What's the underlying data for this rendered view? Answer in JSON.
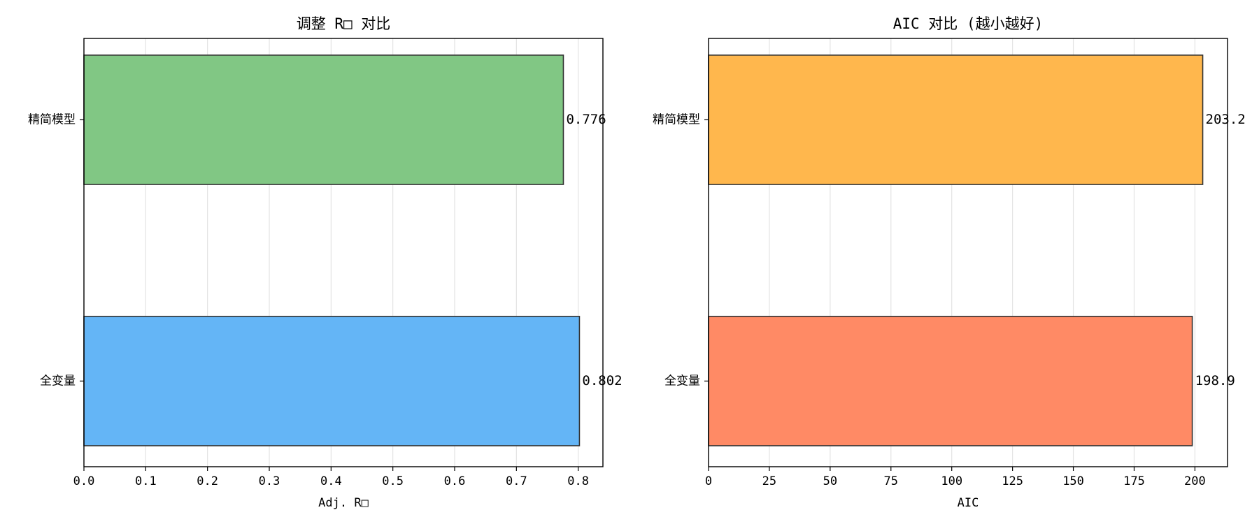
{
  "chart_data": [
    {
      "type": "bar",
      "orientation": "horizontal",
      "title": "调整 R□ 对比",
      "xlabel": "Adj. R□",
      "ylabel": "",
      "categories": [
        "全变量",
        "精简模型"
      ],
      "values": [
        0.802,
        0.776
      ],
      "value_labels": [
        "0.802",
        "0.776"
      ],
      "colors": [
        "#64b5f6",
        "#81c784"
      ],
      "xlim": [
        0,
        0.84
      ],
      "xticks": [
        0,
        0.1,
        0.2,
        0.3,
        0.4,
        0.5,
        0.6,
        0.7,
        0.8
      ],
      "xtick_labels": [
        "0.0",
        "0.1",
        "0.2",
        "0.3",
        "0.4",
        "0.5",
        "0.6",
        "0.7",
        "0.8"
      ],
      "grid": "x"
    },
    {
      "type": "bar",
      "orientation": "horizontal",
      "title": "AIC 对比 (越小越好)",
      "xlabel": "AIC",
      "ylabel": "",
      "categories": [
        "全变量",
        "精简模型"
      ],
      "values": [
        198.9,
        203.2
      ],
      "value_labels": [
        "198.9",
        "203.2"
      ],
      "colors": [
        "#ff8a65",
        "#ffb74d"
      ],
      "xlim": [
        0,
        213.4
      ],
      "xticks": [
        0,
        25,
        50,
        75,
        100,
        125,
        150,
        175,
        200
      ],
      "xtick_labels": [
        "0",
        "25",
        "50",
        "75",
        "100",
        "125",
        "150",
        "175",
        "200"
      ],
      "grid": "x"
    }
  ]
}
